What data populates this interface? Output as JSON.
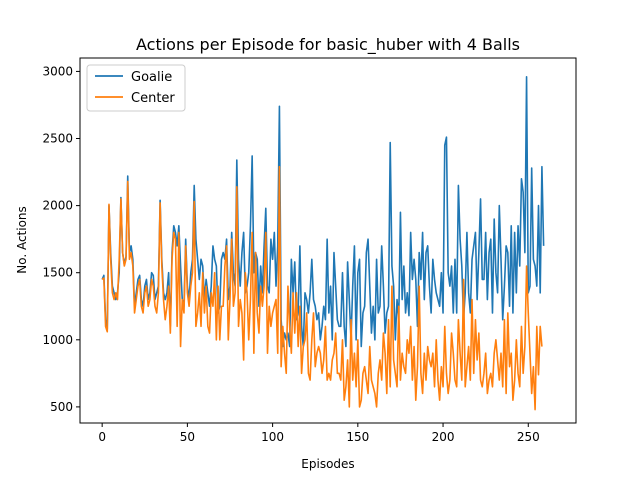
{
  "chart_data": {
    "type": "line",
    "title": "Actions per Episode for basic_huber with 4 Balls",
    "xlabel": "Episodes",
    "ylabel": "No. Actions",
    "xlim": [
      -13,
      278
    ],
    "ylim": [
      380,
      3100
    ],
    "x_ticks": [
      0,
      50,
      100,
      150,
      200,
      250
    ],
    "y_ticks": [
      500,
      1000,
      1500,
      2000,
      2500,
      3000
    ],
    "grid": false,
    "legend_position": "top-left",
    "colors": {
      "Goalie": "#1f77b4",
      "Center": "#ff7f0e"
    },
    "series": [
      {
        "name": "Goalie",
        "x_start": 0,
        "values": [
          1450,
          1480,
          1150,
          1080,
          2000,
          1650,
          1400,
          1350,
          1300,
          1350,
          1500,
          2060,
          1650,
          1560,
          1620,
          2220,
          1650,
          1700,
          1600,
          1250,
          1350,
          1450,
          1480,
          1300,
          1250,
          1400,
          1450,
          1300,
          1350,
          1500,
          1480,
          1300,
          1350,
          1400,
          2040,
          1600,
          1350,
          1300,
          1350,
          1500,
          1100,
          1650,
          1850,
          1800,
          1700,
          1850,
          1550,
          1300,
          1250,
          1750,
          1400,
          1300,
          1500,
          1600,
          2150,
          1750,
          1600,
          1450,
          1600,
          1550,
          1300,
          1450,
          1350,
          1250,
          1400,
          1700,
          1600,
          1550,
          1200,
          1250,
          1600,
          1650,
          1600,
          1750,
          1300,
          1400,
          1800,
          1500,
          1400,
          2340,
          1600,
          1400,
          1650,
          1800,
          1350,
          1400,
          1500,
          1850,
          2370,
          1500,
          1650,
          1600,
          1250,
          1550,
          1350,
          1700,
          1980,
          1400,
          1350,
          1750,
          1600,
          1800,
          1400,
          1700,
          2740,
          1150,
          950,
          1050,
          1000,
          1050,
          950,
          1600,
          1350,
          1580,
          1150,
          1200,
          1700,
          1100,
          950,
          1350,
          1300,
          1200,
          1350,
          1600,
          1300,
          1250,
          1150,
          1200,
          1000,
          1100,
          1250,
          1150,
          1750,
          1200,
          1400,
          1000,
          1650,
          1400,
          1150,
          1100,
          1100,
          1500,
          1100,
          950,
          1580,
          1300,
          1000,
          1400,
          1700,
          1000,
          1500,
          1600,
          950,
          1200,
          1250,
          1650,
          1750,
          1400,
          1050,
          1250,
          1000,
          1600,
          1200,
          1250,
          1700,
          1400,
          1050,
          1200,
          1250,
          2470,
          1550,
          1400,
          1000,
          1300,
          1150,
          1950,
          1300,
          1550,
          1200,
          1350,
          1180,
          1800,
          1450,
          1600,
          1450,
          1100,
          1650,
          1450,
          1800,
          1300,
          1650,
          1700,
          1400,
          1200,
          1600,
          1450,
          1350,
          1300,
          1250,
          1500,
          1200,
          2450,
          2510,
          1500,
          1400,
          1550,
          1200,
          1600,
          1200,
          2150,
          1750,
          1550,
          1150,
          1350,
          1800,
          1350,
          1200,
          1600,
          1700,
          1800,
          1300,
          1650,
          2050,
          1450,
          1450,
          1800,
          1300,
          1650,
          1750,
          1200,
          1900,
          1500,
          1350,
          2000,
          1600,
          1150,
          1400,
          1700,
          1650,
          1250,
          1850,
          1200,
          1800,
          1350,
          1850,
          1550,
          2200,
          2100,
          1650,
          2960,
          1350,
          1400,
          2280,
          1600,
          1550,
          1400,
          2000,
          1350,
          2290,
          1700
        ]
      },
      {
        "name": "Center",
        "x_start": 0,
        "values": [
          1450,
          1460,
          1100,
          1060,
          2010,
          1600,
          1350,
          1300,
          1350,
          1300,
          1600,
          2050,
          1650,
          1550,
          1600,
          2180,
          1600,
          1650,
          1550,
          1200,
          1300,
          1400,
          1450,
          1250,
          1200,
          1350,
          1400,
          1250,
          1300,
          1450,
          1400,
          1250,
          1200,
          1350,
          2020,
          1550,
          1300,
          1150,
          1250,
          1400,
          1050,
          1600,
          1800,
          1750,
          1100,
          1800,
          950,
          1300,
          1200,
          1700,
          1350,
          1250,
          1400,
          1500,
          2030,
          1100,
          1200,
          1350,
          1100,
          1500,
          1200,
          1400,
          1100,
          1050,
          1350,
          1250,
          1500,
          1000,
          1400,
          1000,
          1250,
          1250,
          1550,
          1700,
          1000,
          1300,
          1750,
          1250,
          1350,
          2140,
          1100,
          1300,
          1200,
          850,
          1500,
          1350,
          1000,
          1300,
          1800,
          900,
          1650,
          1200,
          1050,
          1400,
          1250,
          1400,
          1800,
          900,
          1250,
          1100,
          1200,
          1250,
          1300,
          900,
          2290,
          800,
          1100,
          900,
          750,
          1400,
          1100,
          900,
          1350,
          1050,
          1350,
          950,
          1250,
          750,
          950,
          1000,
          1200,
          750,
          700,
          1000,
          1200,
          800,
          900,
          950,
          900,
          750,
          850,
          1100,
          700,
          750,
          700,
          850,
          900,
          1050,
          750,
          750,
          700,
          1000,
          550,
          650,
          850,
          500,
          1150,
          700,
          900,
          650,
          1000,
          500,
          550,
          750,
          800,
          700,
          600,
          950,
          700,
          650,
          600,
          500,
          750,
          850,
          700,
          1050,
          900,
          600,
          1150,
          650,
          1400,
          850,
          750,
          650,
          1250,
          700,
          900,
          800,
          750,
          1000,
          900,
          1100,
          700,
          950,
          550,
          800,
          1400,
          750,
          600,
          900,
          700,
          950,
          850,
          800,
          900,
          650,
          1000,
          700,
          550,
          800,
          650,
          1100,
          750,
          600,
          700,
          1050,
          900,
          700,
          650,
          1150,
          900,
          700,
          1450,
          650,
          800,
          950,
          700,
          1300,
          750,
          1150,
          850,
          1050,
          700,
          650,
          750,
          900,
          600,
          700,
          750,
          650,
          900,
          1000,
          850,
          700,
          900,
          650,
          1150,
          600,
          1200,
          800,
          900,
          550,
          700,
          1000,
          750,
          650,
          1100,
          750,
          950,
          1550,
          1200,
          900,
          600,
          800,
          480,
          1100,
          740,
          1100,
          950
        ]
      }
    ]
  }
}
